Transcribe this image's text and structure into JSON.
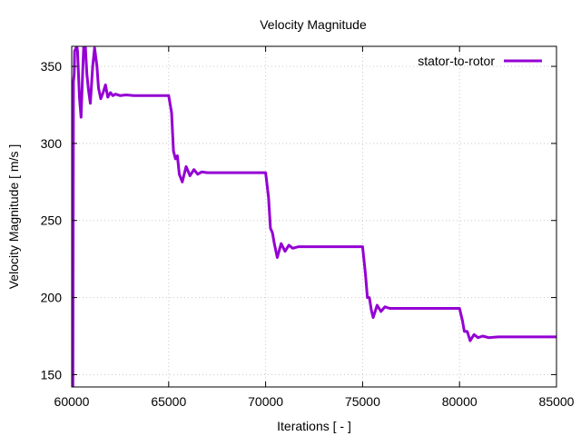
{
  "chart_data": {
    "type": "line",
    "title": "Velocity Magnitude",
    "xlabel": "Iterations [ - ]",
    "ylabel": "Velocity Magnitude [ m/s ]",
    "xlim": [
      60000,
      85000
    ],
    "ylim": [
      142,
      363
    ],
    "xticks": [
      60000,
      65000,
      70000,
      75000,
      80000,
      85000
    ],
    "yticks": [
      150,
      200,
      250,
      300,
      350
    ],
    "grid": true,
    "legend_position": "top-right",
    "series": [
      {
        "name": "stator-to-rotor",
        "color": "#9400d3",
        "points": [
          [
            60000,
            142
          ],
          [
            60020,
            255
          ],
          [
            60060,
            142
          ],
          [
            60090,
            340
          ],
          [
            60130,
            345
          ],
          [
            60150,
            360
          ],
          [
            60260,
            363
          ],
          [
            60300,
            360
          ],
          [
            60400,
            330
          ],
          [
            60480,
            317
          ],
          [
            60560,
            345
          ],
          [
            60620,
            363
          ],
          [
            60700,
            363
          ],
          [
            60780,
            345
          ],
          [
            60860,
            335
          ],
          [
            60960,
            326
          ],
          [
            61080,
            350
          ],
          [
            61180,
            362
          ],
          [
            61300,
            350
          ],
          [
            61380,
            336
          ],
          [
            61500,
            329
          ],
          [
            61620,
            333
          ],
          [
            61740,
            338
          ],
          [
            61860,
            330
          ],
          [
            62000,
            333
          ],
          [
            62120,
            331
          ],
          [
            62260,
            332
          ],
          [
            62500,
            331
          ],
          [
            62800,
            331.5
          ],
          [
            63200,
            331
          ],
          [
            64000,
            331
          ],
          [
            65000,
            331
          ],
          [
            65150,
            320
          ],
          [
            65250,
            295
          ],
          [
            65350,
            290
          ],
          [
            65450,
            292
          ],
          [
            65550,
            280
          ],
          [
            65700,
            275
          ],
          [
            65900,
            285
          ],
          [
            66100,
            279
          ],
          [
            66300,
            283
          ],
          [
            66500,
            280
          ],
          [
            66700,
            281.5
          ],
          [
            67000,
            281
          ],
          [
            68000,
            281
          ],
          [
            70000,
            281
          ],
          [
            70150,
            265
          ],
          [
            70250,
            245
          ],
          [
            70350,
            242
          ],
          [
            70450,
            235
          ],
          [
            70600,
            226
          ],
          [
            70800,
            235
          ],
          [
            71000,
            230
          ],
          [
            71200,
            234
          ],
          [
            71400,
            232
          ],
          [
            71700,
            233
          ],
          [
            72000,
            233
          ],
          [
            73000,
            233
          ],
          [
            75000,
            233
          ],
          [
            75150,
            215
          ],
          [
            75250,
            200
          ],
          [
            75350,
            200
          ],
          [
            75450,
            192
          ],
          [
            75550,
            187
          ],
          [
            75750,
            195
          ],
          [
            75950,
            191
          ],
          [
            76150,
            194
          ],
          [
            76400,
            193
          ],
          [
            76800,
            193
          ],
          [
            78000,
            193
          ],
          [
            80000,
            193
          ],
          [
            80150,
            185
          ],
          [
            80250,
            178
          ],
          [
            80400,
            178
          ],
          [
            80550,
            172
          ],
          [
            80750,
            176
          ],
          [
            80950,
            174
          ],
          [
            81200,
            175
          ],
          [
            81500,
            174
          ],
          [
            82000,
            174.5
          ],
          [
            83000,
            174.5
          ],
          [
            85000,
            174.5
          ]
        ]
      }
    ]
  }
}
